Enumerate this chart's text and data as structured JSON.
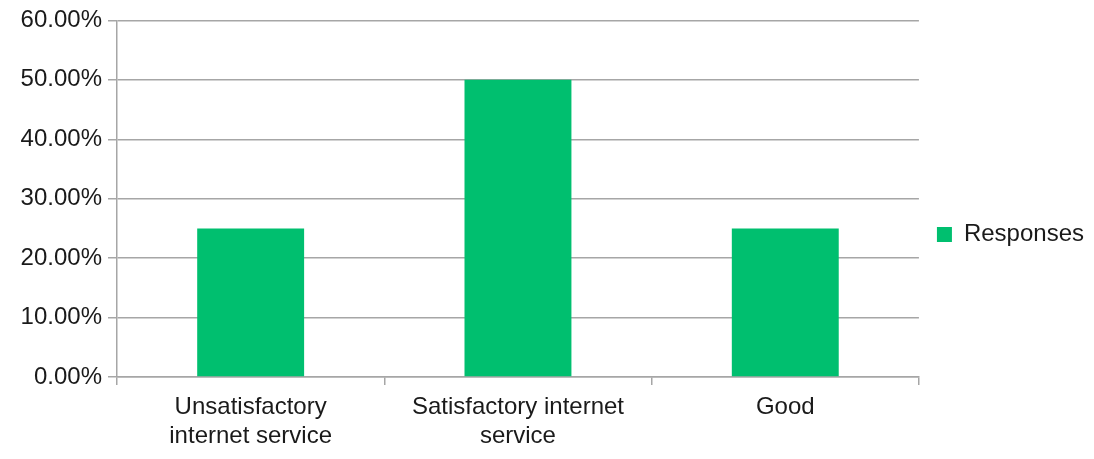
{
  "chart_data": {
    "type": "bar",
    "categories": [
      "Unsatisfactory internet service",
      "Satisfactory internet service",
      "Good"
    ],
    "series": [
      {
        "name": "Responses",
        "color": "#00bf6f",
        "values": [
          25,
          50,
          25
        ]
      }
    ],
    "ylim": [
      0,
      60
    ],
    "yticks": [
      {
        "value": 0,
        "label": "0.00%"
      },
      {
        "value": 10,
        "label": "10.00%"
      },
      {
        "value": 20,
        "label": "20.00%"
      },
      {
        "value": 30,
        "label": "30.00%"
      },
      {
        "value": 40,
        "label": "40.00%"
      },
      {
        "value": 50,
        "label": "50.00%"
      },
      {
        "value": 60,
        "label": "60.00%"
      }
    ],
    "grid": "y",
    "legend": "right"
  }
}
